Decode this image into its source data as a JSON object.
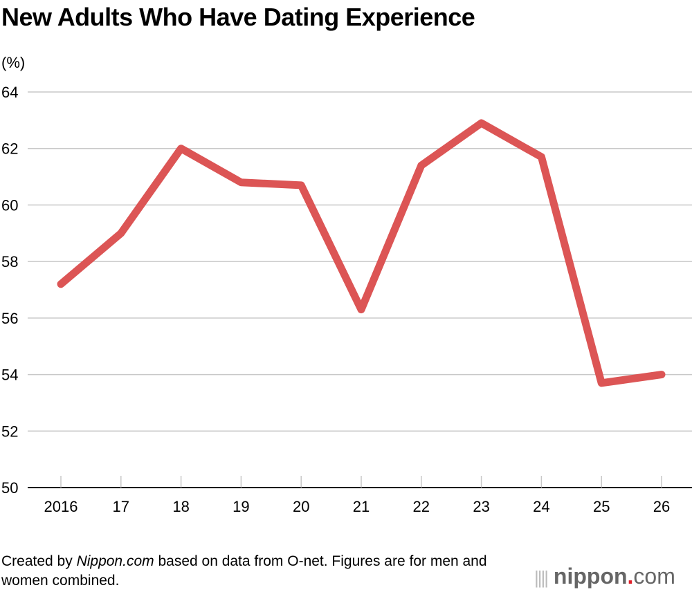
{
  "chart_data": {
    "type": "line",
    "title": "New Adults Who Have Dating Experience",
    "ylabel": "(%)",
    "categories": [
      "2016",
      "17",
      "18",
      "19",
      "20",
      "21",
      "22",
      "23",
      "24",
      "25",
      "26"
    ],
    "series": [
      {
        "values": [
          57.2,
          59.0,
          62.0,
          60.8,
          60.7,
          56.3,
          61.4,
          62.9,
          61.7,
          53.7,
          54.0
        ],
        "color": "#dc5555"
      }
    ],
    "ylim": [
      50,
      64
    ],
    "yticks": [
      50,
      52,
      54,
      56,
      58,
      60,
      62,
      64
    ],
    "grid": true,
    "legend": "none"
  },
  "footer": {
    "note_prefix": "Created by ",
    "note_source": "Nippon.com",
    "note_rest": " based on data from O-net. Figures are for men and women combined.",
    "logo_text": "nippon.com"
  }
}
